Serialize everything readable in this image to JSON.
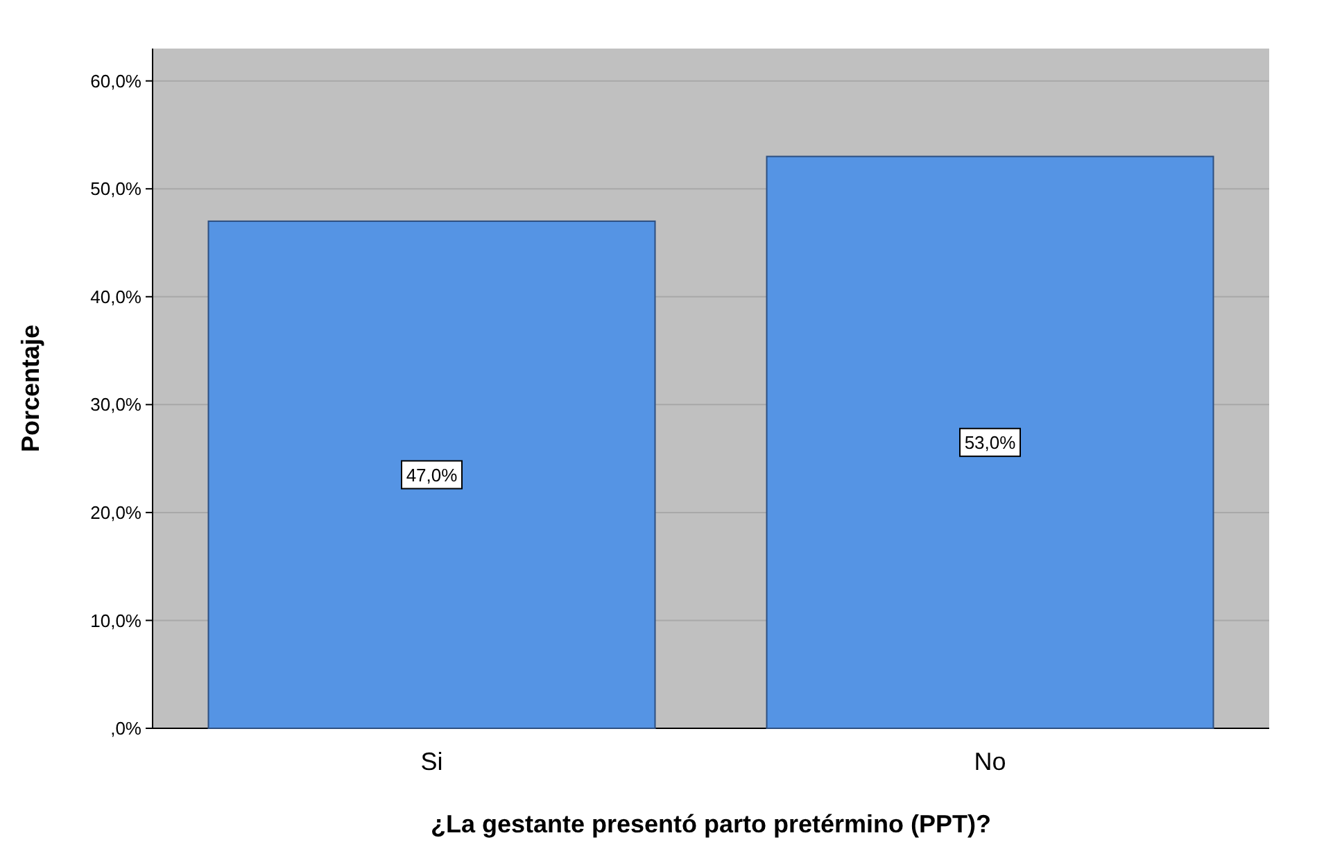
{
  "chart_data": {
    "type": "bar",
    "xlabel": "¿La gestante presentó parto pretérmino (PPT)?",
    "ylabel": "Porcentaje",
    "categories": [
      "Si",
      "No"
    ],
    "values": [
      47.0,
      53.0
    ],
    "value_labels": [
      "47,0%",
      "53,0%"
    ],
    "color": "#5594e4",
    "ylim": [
      0,
      63
    ],
    "yticks": [
      {
        "value": 0,
        "label": ",0%"
      },
      {
        "value": 10,
        "label": "10,0%"
      },
      {
        "value": 20,
        "label": "20,0%"
      },
      {
        "value": 30,
        "label": "30,0%"
      },
      {
        "value": 40,
        "label": "40,0%"
      },
      {
        "value": 50,
        "label": "50,0%"
      },
      {
        "value": 60,
        "label": "60,0%"
      }
    ],
    "grid": "y"
  }
}
